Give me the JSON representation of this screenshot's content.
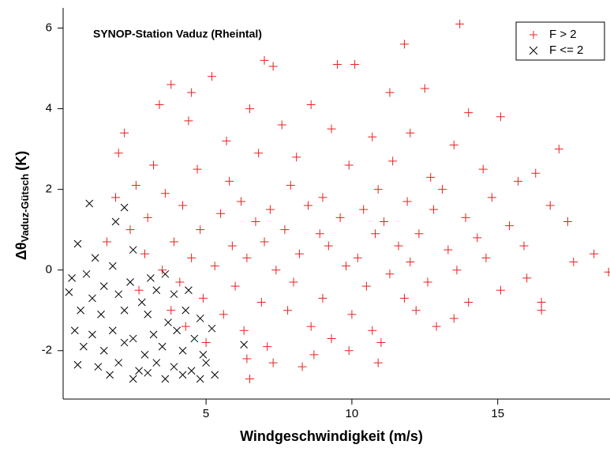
{
  "chart_data": {
    "type": "scatter",
    "title": "SYNOP-Station Vaduz (Rheintal)",
    "xlabel": "Windgeschwindigkeit (m/s)",
    "ylabel": {
      "main": "Δθ",
      "sub": "Vaduz-Gütsch",
      "unit": "(K)"
    },
    "xlim": [
      0.1,
      18.85
    ],
    "ylim": [
      -3.2,
      6.5
    ],
    "xticks": [
      5,
      10,
      15
    ],
    "yticks": [
      -2,
      0,
      2,
      4,
      6
    ],
    "legend": "upper right",
    "series": [
      {
        "name": "F > 2",
        "color": "#e8211f",
        "marker": "plus",
        "x": [
          13.7,
          11.8,
          7.0,
          9.5,
          10.1,
          7.3,
          5.2,
          12.5,
          3.8,
          4.5,
          11.3,
          8.6,
          6.5,
          3.4,
          14.0,
          15.1,
          4.4,
          7.6,
          9.3,
          12.0,
          2.2,
          10.7,
          13.5,
          17.1,
          5.7,
          2.0,
          6.8,
          8.1,
          11.4,
          14.5,
          3.2,
          4.7,
          9.9,
          16.3,
          12.7,
          15.7,
          2.6,
          5.8,
          7.9,
          10.9,
          13.1,
          1.9,
          3.6,
          6.2,
          9.0,
          11.9,
          14.8,
          4.2,
          7.2,
          8.5,
          10.4,
          12.8,
          16.8,
          3.0,
          5.5,
          6.7,
          9.6,
          11.1,
          13.9,
          15.4,
          17.4,
          2.4,
          4.8,
          7.7,
          8.9,
          10.8,
          12.3,
          14.3,
          1.6,
          3.9,
          5.9,
          7.0,
          9.2,
          11.6,
          13.3,
          15.9,
          18.3,
          2.9,
          4.5,
          6.4,
          8.2,
          10.2,
          12.0,
          14.6,
          17.6,
          3.5,
          5.3,
          7.4,
          9.8,
          11.3,
          13.6,
          16.0,
          18.8,
          4.1,
          6.0,
          8.0,
          10.5,
          12.6,
          15.1,
          2.7,
          4.9,
          6.9,
          9.0,
          11.8,
          14.0,
          16.5,
          3.8,
          5.6,
          7.8,
          10.0,
          12.2,
          13.5,
          4.3,
          6.3,
          8.6,
          10.7,
          12.9,
          16.5,
          5.0,
          7.1,
          9.3,
          11.0,
          6.4,
          8.7,
          9.9,
          10.9,
          7.3,
          8.3,
          6.5
        ],
        "values": [
          6.1,
          5.6,
          5.2,
          5.1,
          5.1,
          5.05,
          4.8,
          4.5,
          4.6,
          4.4,
          4.4,
          4.1,
          4.0,
          4.1,
          3.9,
          3.8,
          3.7,
          3.6,
          3.5,
          3.4,
          3.4,
          3.3,
          3.1,
          3.0,
          3.2,
          2.9,
          2.9,
          2.8,
          2.7,
          2.5,
          2.6,
          2.5,
          2.6,
          2.4,
          2.3,
          2.2,
          2.1,
          2.2,
          2.1,
          2.0,
          2.0,
          1.8,
          1.9,
          1.7,
          1.8,
          1.7,
          1.8,
          1.6,
          1.5,
          1.6,
          1.5,
          1.5,
          1.6,
          1.3,
          1.4,
          1.2,
          1.3,
          1.2,
          1.3,
          1.1,
          1.2,
          1.0,
          1.0,
          1.0,
          0.9,
          0.9,
          0.9,
          0.8,
          0.7,
          0.7,
          0.6,
          0.7,
          0.6,
          0.6,
          0.5,
          0.6,
          0.4,
          0.4,
          0.3,
          0.3,
          0.4,
          0.3,
          0.2,
          0.3,
          0.2,
          0.0,
          0.1,
          0.0,
          0.1,
          -0.1,
          0.0,
          -0.2,
          -0.05,
          -0.3,
          -0.4,
          -0.3,
          -0.4,
          -0.3,
          -0.5,
          -0.5,
          -0.7,
          -0.8,
          -0.7,
          -0.7,
          -0.8,
          -0.8,
          -1.0,
          -1.1,
          -1.0,
          -1.1,
          -1.0,
          -1.2,
          -1.4,
          -1.5,
          -1.4,
          -1.5,
          -1.4,
          -1.0,
          -1.8,
          -1.9,
          -1.7,
          -1.8,
          -2.2,
          -2.1,
          -2.0,
          -2.3,
          -2.3,
          -2.4,
          -2.7
        ]
      },
      {
        "name": "F <= 2",
        "color": "#000000",
        "marker": "cross",
        "x": [
          1.0,
          1.9,
          2.2,
          0.6,
          2.5,
          1.2,
          1.8,
          0.4,
          0.9,
          1.5,
          2.4,
          3.1,
          3.6,
          0.3,
          1.1,
          2.0,
          2.8,
          3.3,
          3.9,
          4.4,
          0.7,
          1.4,
          2.2,
          3.0,
          3.7,
          4.3,
          4.8,
          0.5,
          1.1,
          1.8,
          2.5,
          3.2,
          4.0,
          4.6,
          5.2,
          0.8,
          1.5,
          2.2,
          2.9,
          3.5,
          4.2,
          4.9,
          6.3,
          0.6,
          1.3,
          2.0,
          2.7,
          3.3,
          3.9,
          4.5,
          5.0,
          1.7,
          2.5,
          3.6,
          4.2,
          4.8,
          5.3,
          3.0
        ],
        "values": [
          1.65,
          1.2,
          1.55,
          0.65,
          0.5,
          0.3,
          0.1,
          -0.2,
          -0.1,
          -0.4,
          -0.3,
          -0.2,
          -0.1,
          -0.55,
          -0.7,
          -0.6,
          -0.8,
          -0.5,
          -0.6,
          -0.5,
          -1.0,
          -1.1,
          -1.0,
          -1.1,
          -1.3,
          -1.0,
          -1.2,
          -1.5,
          -1.6,
          -1.5,
          -1.7,
          -1.6,
          -1.5,
          -1.7,
          -1.45,
          -1.9,
          -2.0,
          -1.8,
          -2.1,
          -1.9,
          -2.0,
          -2.1,
          -1.85,
          -2.35,
          -2.4,
          -2.3,
          -2.5,
          -2.3,
          -2.4,
          -2.5,
          -2.3,
          -2.6,
          -2.7,
          -2.7,
          -2.6,
          -2.7,
          -2.6,
          -2.55
        ]
      }
    ]
  }
}
